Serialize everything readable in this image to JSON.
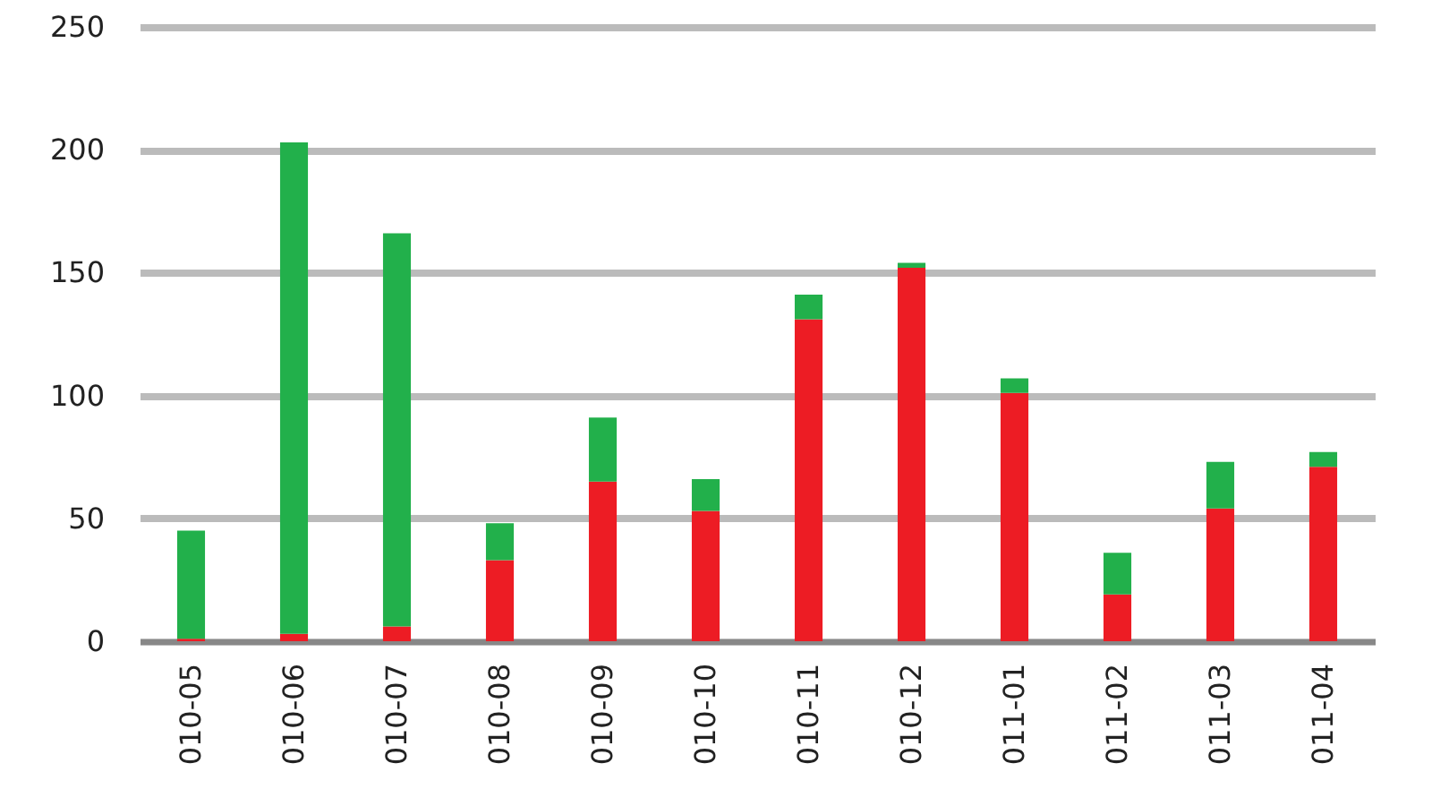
{
  "chart_data": {
    "type": "bar",
    "stacked": true,
    "categories": [
      "010-05",
      "010-06",
      "010-07",
      "010-08",
      "010-09",
      "010-10",
      "010-11",
      "010-12",
      "011-01",
      "011-02",
      "011-03",
      "011-04"
    ],
    "series": [
      {
        "color": "#ed1c24",
        "values": [
          1,
          3,
          6,
          33,
          65,
          53,
          131,
          152,
          101,
          19,
          54,
          71
        ]
      },
      {
        "color": "#22b04b",
        "values": [
          44,
          200,
          160,
          15,
          26,
          13,
          10,
          2,
          6,
          17,
          19,
          6
        ]
      }
    ],
    "ylim": [
      0,
      250
    ],
    "yticks": [
      0,
      50,
      100,
      150,
      200,
      250
    ],
    "grid": "y"
  }
}
